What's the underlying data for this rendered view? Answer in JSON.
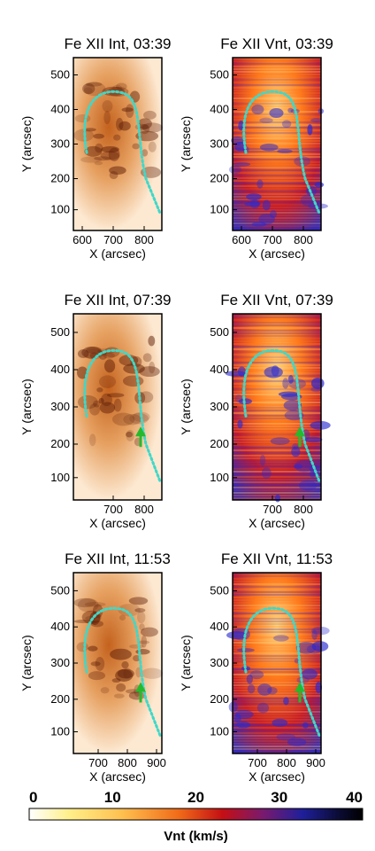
{
  "figure": {
    "panels": [
      {
        "title": "Fe XII Int, 03:39",
        "xlabel": "X (arcsec)",
        "ylabel": "Y (arcsec)",
        "xticks": [
          "600",
          "700",
          "800"
        ],
        "yticks": [
          "500",
          "400",
          "300",
          "200",
          "100"
        ],
        "map": "intensity",
        "arrow": false
      },
      {
        "title": "Fe XII Vnt, 03:39",
        "xlabel": "X (arcsec)",
        "ylabel": "Y (arcsec)",
        "xticks": [
          "600",
          "700",
          "800"
        ],
        "yticks": [
          "500",
          "400",
          "300",
          "200",
          "100"
        ],
        "map": "vnt",
        "arrow": false
      },
      {
        "title": "Fe XII Int, 07:39",
        "xlabel": "X (arcsec)",
        "ylabel": "Y (arcsec)",
        "xticks": [
          "700",
          "800"
        ],
        "yticks": [
          "500",
          "400",
          "300",
          "200",
          "100"
        ],
        "map": "intensity",
        "arrow": true
      },
      {
        "title": "Fe XII Vnt, 07:39",
        "xlabel": "X (arcsec)",
        "ylabel": "Y (arcsec)",
        "xticks": [
          "700",
          "800"
        ],
        "yticks": [
          "500",
          "400",
          "300",
          "200",
          "100"
        ],
        "map": "vnt",
        "arrow": true
      },
      {
        "title": "Fe XII Int, 11:53",
        "xlabel": "X (arcsec)",
        "ylabel": "Y (arcsec)",
        "xticks": [
          "700",
          "800",
          "900"
        ],
        "yticks": [
          "500",
          "400",
          "300",
          "200",
          "100"
        ],
        "map": "intensity",
        "arrow": true
      },
      {
        "title": "Fe XII Vnt, 11:53",
        "xlabel": "X (arcsec)",
        "ylabel": "Y (arcsec)",
        "xticks": [
          "700",
          "800",
          "900"
        ],
        "yticks": [
          "500",
          "400",
          "300",
          "200",
          "100"
        ],
        "map": "vnt",
        "arrow": true
      }
    ],
    "colorbar": {
      "label": "Vnt (km/s)",
      "ticks": [
        "0",
        "10",
        "20",
        "30",
        "40"
      ],
      "range": [
        0,
        40
      ],
      "colors": [
        "#ffffff",
        "#ffe66a",
        "#ffb84a",
        "#f06a18",
        "#c40f14",
        "#7a1a6e",
        "#1f1f9a",
        "#0b0b33",
        "#000000"
      ]
    },
    "colors": {
      "loop_overlay": "#3fd8c8",
      "arrow": "#27b92d",
      "int_light": "#fde9d2",
      "int_dark": "#5a1a05",
      "vnt_warm": "#ff7a1c",
      "vnt_cold": "#2a2ad0"
    }
  }
}
